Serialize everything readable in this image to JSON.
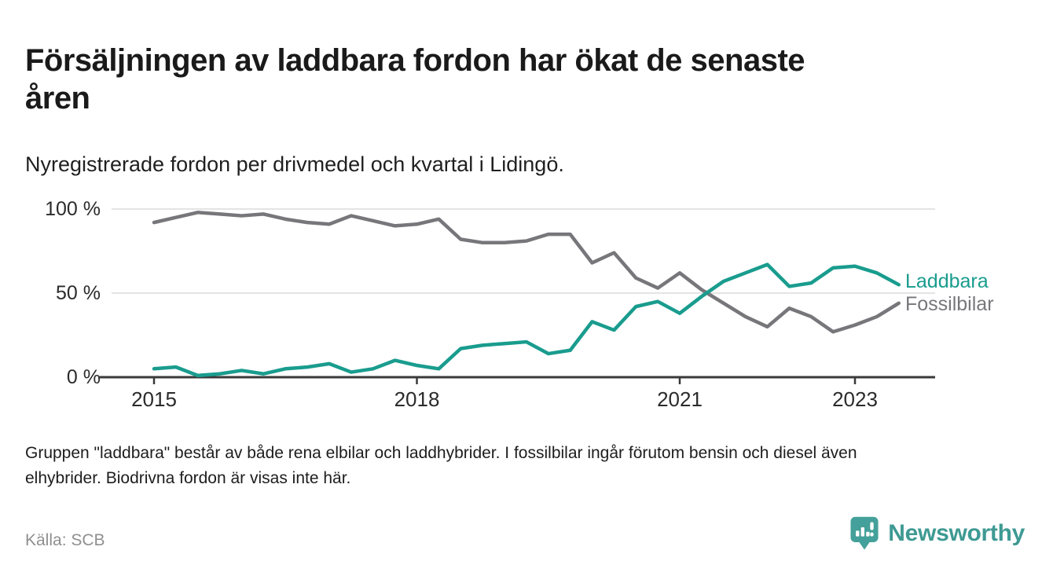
{
  "header": {
    "title_line1": "Försäljningen av laddbara fordon har ökat de senaste",
    "title_line2": "åren",
    "subtitle": "Nyregistrerade fordon per drivmedel och kvartal i Lidingö."
  },
  "chart_data": {
    "type": "line",
    "title": "Försäljningen av laddbara fordon har ökat de senaste åren",
    "subtitle": "Nyregistrerade fordon per drivmedel och kvartal i Lidingö.",
    "x_unit": "quarter",
    "x": [
      "2015 Q1",
      "2015 Q2",
      "2015 Q3",
      "2015 Q4",
      "2016 Q1",
      "2016 Q2",
      "2016 Q3",
      "2016 Q4",
      "2017 Q1",
      "2017 Q2",
      "2017 Q3",
      "2017 Q4",
      "2018 Q1",
      "2018 Q2",
      "2018 Q3",
      "2018 Q4",
      "2019 Q1",
      "2019 Q2",
      "2019 Q3",
      "2019 Q4",
      "2020 Q1",
      "2020 Q2",
      "2020 Q3",
      "2020 Q4",
      "2021 Q1",
      "2021 Q2",
      "2021 Q3",
      "2021 Q4",
      "2022 Q1",
      "2022 Q2",
      "2022 Q3",
      "2022 Q4",
      "2023 Q1",
      "2023 Q2",
      "2023 Q3"
    ],
    "series": [
      {
        "name": "Laddbara",
        "color": "#199c8e",
        "values": [
          5,
          6,
          1,
          2,
          4,
          2,
          5,
          6,
          8,
          3,
          5,
          10,
          7,
          5,
          17,
          19,
          20,
          21,
          14,
          16,
          33,
          28,
          42,
          45,
          38,
          48,
          57,
          62,
          67,
          54,
          56,
          65,
          66,
          62,
          55
        ]
      },
      {
        "name": "Fossilbilar",
        "color": "#77777b",
        "values": [
          92,
          95,
          98,
          97,
          96,
          97,
          94,
          92,
          91,
          96,
          93,
          90,
          91,
          94,
          82,
          80,
          80,
          81,
          85,
          85,
          68,
          74,
          59,
          53,
          62,
          52,
          44,
          36,
          30,
          41,
          36,
          27,
          31,
          36,
          44
        ]
      }
    ],
    "ylim": [
      0,
      100
    ],
    "yticks": [
      {
        "value": 100,
        "label": "100 %"
      },
      {
        "value": 50,
        "label": "50 %"
      },
      {
        "value": 0,
        "label": "0 %"
      }
    ],
    "xticks": [
      {
        "x": "2015 Q1",
        "label": "2015"
      },
      {
        "x": "2018 Q1",
        "label": "2018"
      },
      {
        "x": "2021 Q1",
        "label": "2021"
      },
      {
        "x": "2023 Q1",
        "label": "2023"
      }
    ],
    "grid": true,
    "legend_position": "right-of-line-ends",
    "colors": {
      "gridline": "#dcdcdc",
      "axis": "#3a3a3a",
      "tick_label": "#2b2b2b"
    }
  },
  "footer": {
    "note_line1": "Gruppen \"laddbara\" består av både rena elbilar och laddhybrider. I fossilbilar ingår förutom bensin och diesel även",
    "note_line2": "elhybrider. Biodrivna fordon är visas inte här.",
    "source": "Källa: SCB"
  },
  "branding": {
    "name": "Newsworthy",
    "logo_icon": "bar-chart-speech-bubble",
    "color": "#3e9a93",
    "icon_color": "#44a09a"
  }
}
